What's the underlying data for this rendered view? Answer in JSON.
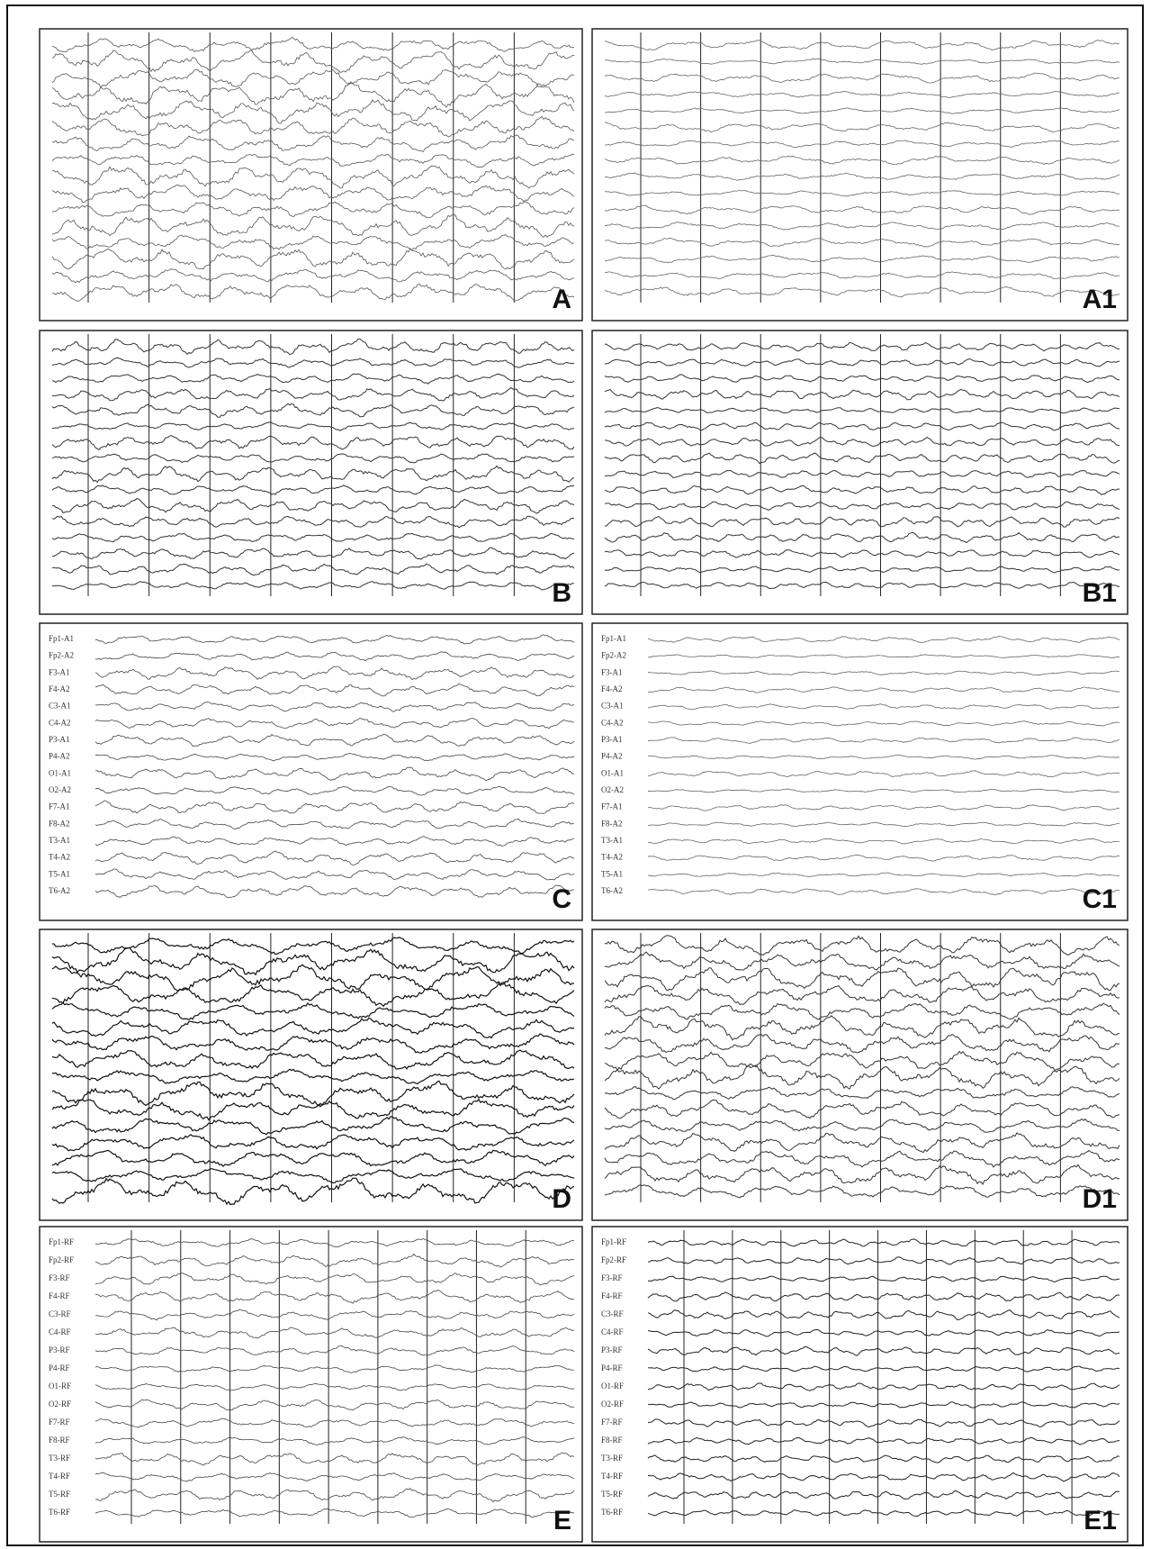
{
  "panels": [
    {
      "label": "A",
      "channels": []
    },
    {
      "label": "A1",
      "channels": []
    },
    {
      "label": "B",
      "channels": []
    },
    {
      "label": "B1",
      "channels": []
    },
    {
      "label": "C",
      "channels": [
        "Fp1-A1",
        "Fp2-A2",
        "F3-A1",
        "F4-A2",
        "C3-A1",
        "C4-A2",
        "P3-A1",
        "P4-A2",
        "O1-A1",
        "O2-A2",
        "F7-A1",
        "F8-A2",
        "T3-A1",
        "T4-A2",
        "T5-A1",
        "T6-A2"
      ]
    },
    {
      "label": "C1",
      "channels": [
        "Fp1-A1",
        "Fp2-A2",
        "F3-A1",
        "F4-A2",
        "C3-A1",
        "C4-A2",
        "P3-A1",
        "P4-A2",
        "O1-A1",
        "O2-A2",
        "F7-A1",
        "F8-A2",
        "T3-A1",
        "T4-A2",
        "T5-A1",
        "T6-A2"
      ]
    },
    {
      "label": "D",
      "channels": []
    },
    {
      "label": "D1",
      "channels": []
    },
    {
      "label": "E",
      "channels": [
        "Fp1-RF",
        "Fp2-RF",
        "F3-RF",
        "F4-RF",
        "C3-RF",
        "C4-RF",
        "P3-RF",
        "P4-RF",
        "O1-RF",
        "O2-RF",
        "F7-RF",
        "F8-RF",
        "T3-RF",
        "T4-RF",
        "T5-RF",
        "T6-RF"
      ]
    },
    {
      "label": "E1",
      "channels": [
        "Fp1-RF",
        "Fp2-RF",
        "F3-RF",
        "F4-RF",
        "C3-RF",
        "C4-RF",
        "P3-RF",
        "P4-RF",
        "O1-RF",
        "O2-RF",
        "F7-RF",
        "F8-RF",
        "T3-RF",
        "T4-RF",
        "T5-RF",
        "T6-RF"
      ]
    }
  ]
}
